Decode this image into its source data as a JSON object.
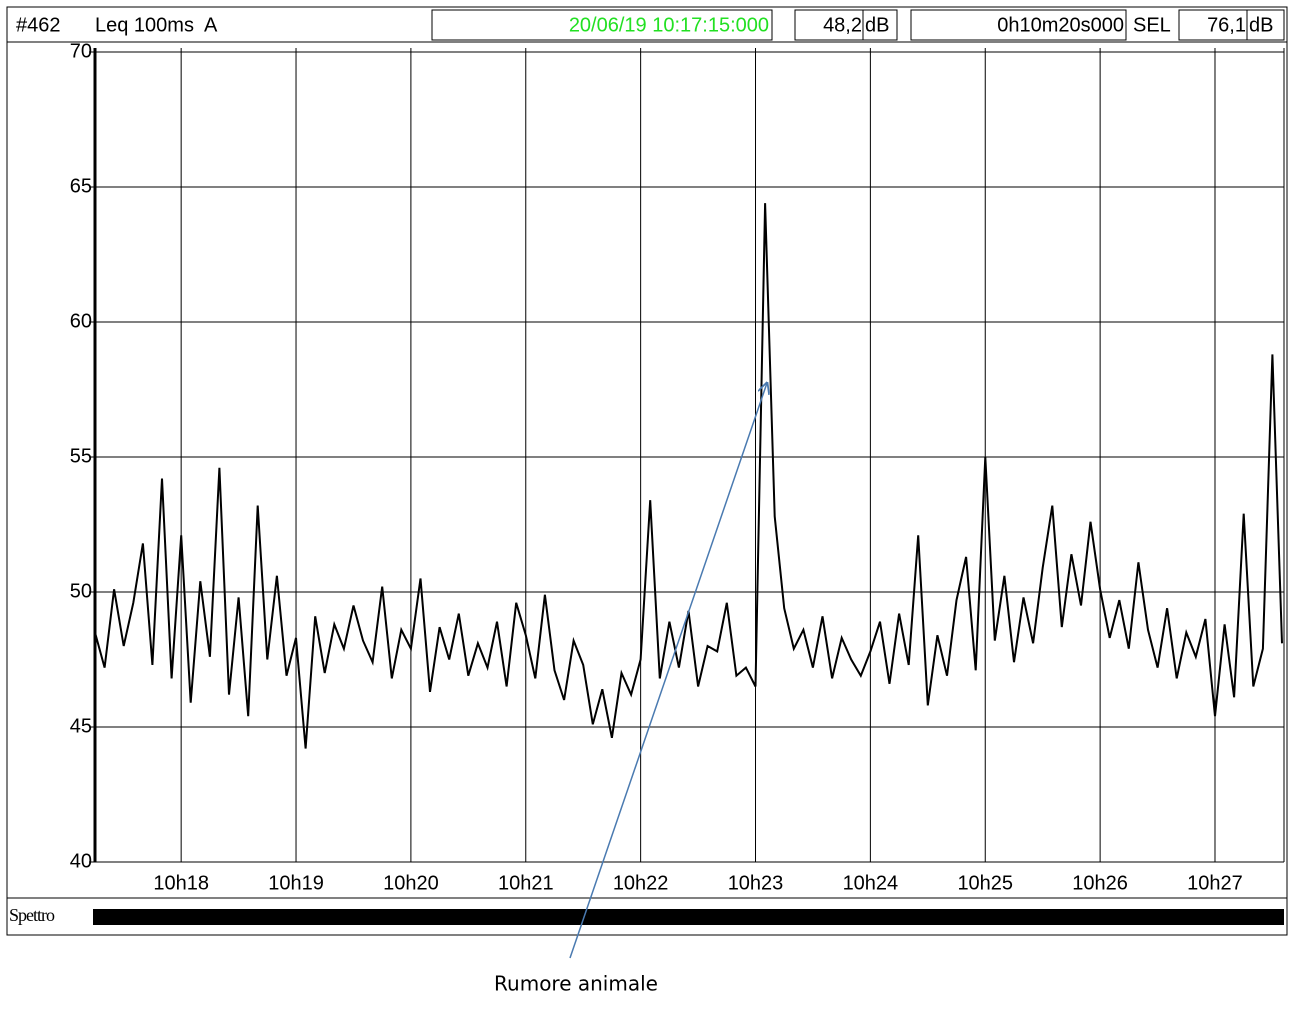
{
  "header": {
    "id": "#462",
    "measure": "Leq 100ms  A",
    "start": "20/06/19 10:17:15:000",
    "level": "48,2",
    "level_unit": "dB",
    "duration": "0h10m20s000",
    "sel_label": "SEL",
    "sel": "76,1",
    "sel_unit": "dB"
  },
  "spectrum_label": "Spettro",
  "chart_data": {
    "type": "line",
    "annotation": "Rumore animale",
    "grid": true,
    "color": "#000000",
    "x": [
      "10:17:15",
      "10:17:20",
      "10:17:25",
      "10:17:30",
      "10:17:35",
      "10:17:40",
      "10:17:45",
      "10:17:50",
      "10:17:55",
      "10:18:00",
      "10:18:05",
      "10:18:10",
      "10:18:15",
      "10:18:20",
      "10:18:25",
      "10:18:30",
      "10:18:35",
      "10:18:40",
      "10:18:45",
      "10:18:50",
      "10:18:55",
      "10:19:00",
      "10:19:05",
      "10:19:10",
      "10:19:15",
      "10:19:20",
      "10:19:25",
      "10:19:30",
      "10:19:35",
      "10:19:40",
      "10:19:45",
      "10:19:50",
      "10:19:55",
      "10:20:00",
      "10:20:05",
      "10:20:10",
      "10:20:15",
      "10:20:20",
      "10:20:25",
      "10:20:30",
      "10:20:35",
      "10:20:40",
      "10:20:45",
      "10:20:50",
      "10:20:55",
      "10:21:00",
      "10:21:05",
      "10:21:10",
      "10:21:15",
      "10:21:20",
      "10:21:25",
      "10:21:30",
      "10:21:35",
      "10:21:40",
      "10:21:45",
      "10:21:50",
      "10:21:55",
      "10:22:00",
      "10:22:05",
      "10:22:10",
      "10:22:15",
      "10:22:20",
      "10:22:25",
      "10:22:30",
      "10:22:35",
      "10:22:40",
      "10:22:45",
      "10:22:50",
      "10:22:55",
      "10:23:00",
      "10:23:05",
      "10:23:10",
      "10:23:15",
      "10:23:20",
      "10:23:25",
      "10:23:30",
      "10:23:35",
      "10:23:40",
      "10:23:45",
      "10:23:50",
      "10:23:55",
      "10:24:00",
      "10:24:05",
      "10:24:10",
      "10:24:15",
      "10:24:20",
      "10:24:25",
      "10:24:30",
      "10:24:35",
      "10:24:40",
      "10:24:45",
      "10:24:50",
      "10:24:55",
      "10:25:00",
      "10:25:05",
      "10:25:10",
      "10:25:15",
      "10:25:20",
      "10:25:25",
      "10:25:30",
      "10:25:35",
      "10:25:40",
      "10:25:45",
      "10:25:50",
      "10:25:55",
      "10:26:00",
      "10:26:05",
      "10:26:10",
      "10:26:15",
      "10:26:20",
      "10:26:25",
      "10:26:30",
      "10:26:35",
      "10:26:40",
      "10:26:45",
      "10:26:50",
      "10:26:55",
      "10:27:00",
      "10:27:05",
      "10:27:10",
      "10:27:15",
      "10:27:20",
      "10:27:25",
      "10:27:30",
      "10:27:35"
    ],
    "values": [
      48.5,
      47.2,
      50.1,
      48.0,
      49.6,
      51.8,
      47.3,
      54.2,
      46.8,
      52.1,
      45.9,
      50.4,
      47.6,
      54.6,
      46.2,
      49.8,
      45.4,
      53.2,
      47.5,
      50.6,
      46.9,
      48.3,
      44.2,
      49.1,
      47.0,
      48.8,
      47.9,
      49.5,
      48.2,
      47.4,
      50.2,
      46.8,
      48.6,
      47.9,
      50.5,
      46.3,
      48.7,
      47.5,
      49.2,
      46.9,
      48.1,
      47.2,
      48.9,
      46.5,
      49.6,
      48.4,
      46.8,
      49.9,
      47.1,
      46.0,
      48.2,
      47.3,
      45.1,
      46.4,
      44.6,
      47.0,
      46.2,
      47.5,
      53.4,
      46.8,
      48.9,
      47.2,
      49.3,
      46.5,
      48.0,
      47.8,
      49.6,
      46.9,
      47.2,
      46.5,
      64.4,
      52.8,
      49.4,
      47.9,
      48.6,
      47.2,
      49.1,
      46.8,
      48.3,
      47.5,
      46.9,
      47.8,
      48.9,
      46.6,
      49.2,
      47.3,
      52.1,
      45.8,
      48.4,
      46.9,
      49.7,
      51.3,
      47.1,
      55.0,
      48.2,
      50.6,
      47.4,
      49.8,
      48.1,
      50.9,
      53.2,
      48.7,
      51.4,
      49.5,
      52.6,
      50.1,
      48.3,
      49.7,
      47.9,
      51.1,
      48.6,
      47.2,
      49.4,
      46.8,
      48.5,
      47.6,
      49.0,
      45.4,
      48.8,
      46.1,
      52.9,
      46.5,
      47.9,
      58.8,
      48.1
    ],
    "xlim": [
      "10:17:15",
      "10:27:35"
    ],
    "xticks": [
      {
        "value": "10:18:00",
        "label": "10h18"
      },
      {
        "value": "10:19:00",
        "label": "10h19"
      },
      {
        "value": "10:20:00",
        "label": "10h20"
      },
      {
        "value": "10:21:00",
        "label": "10h21"
      },
      {
        "value": "10:22:00",
        "label": "10h22"
      },
      {
        "value": "10:23:00",
        "label": "10h23"
      },
      {
        "value": "10:24:00",
        "label": "10h24"
      },
      {
        "value": "10:25:00",
        "label": "10h25"
      },
      {
        "value": "10:26:00",
        "label": "10h26"
      },
      {
        "value": "10:27:00",
        "label": "10h27"
      }
    ],
    "ylim": [
      40,
      70
    ],
    "yticks": [
      40,
      45,
      50,
      55,
      60,
      65,
      70
    ]
  }
}
